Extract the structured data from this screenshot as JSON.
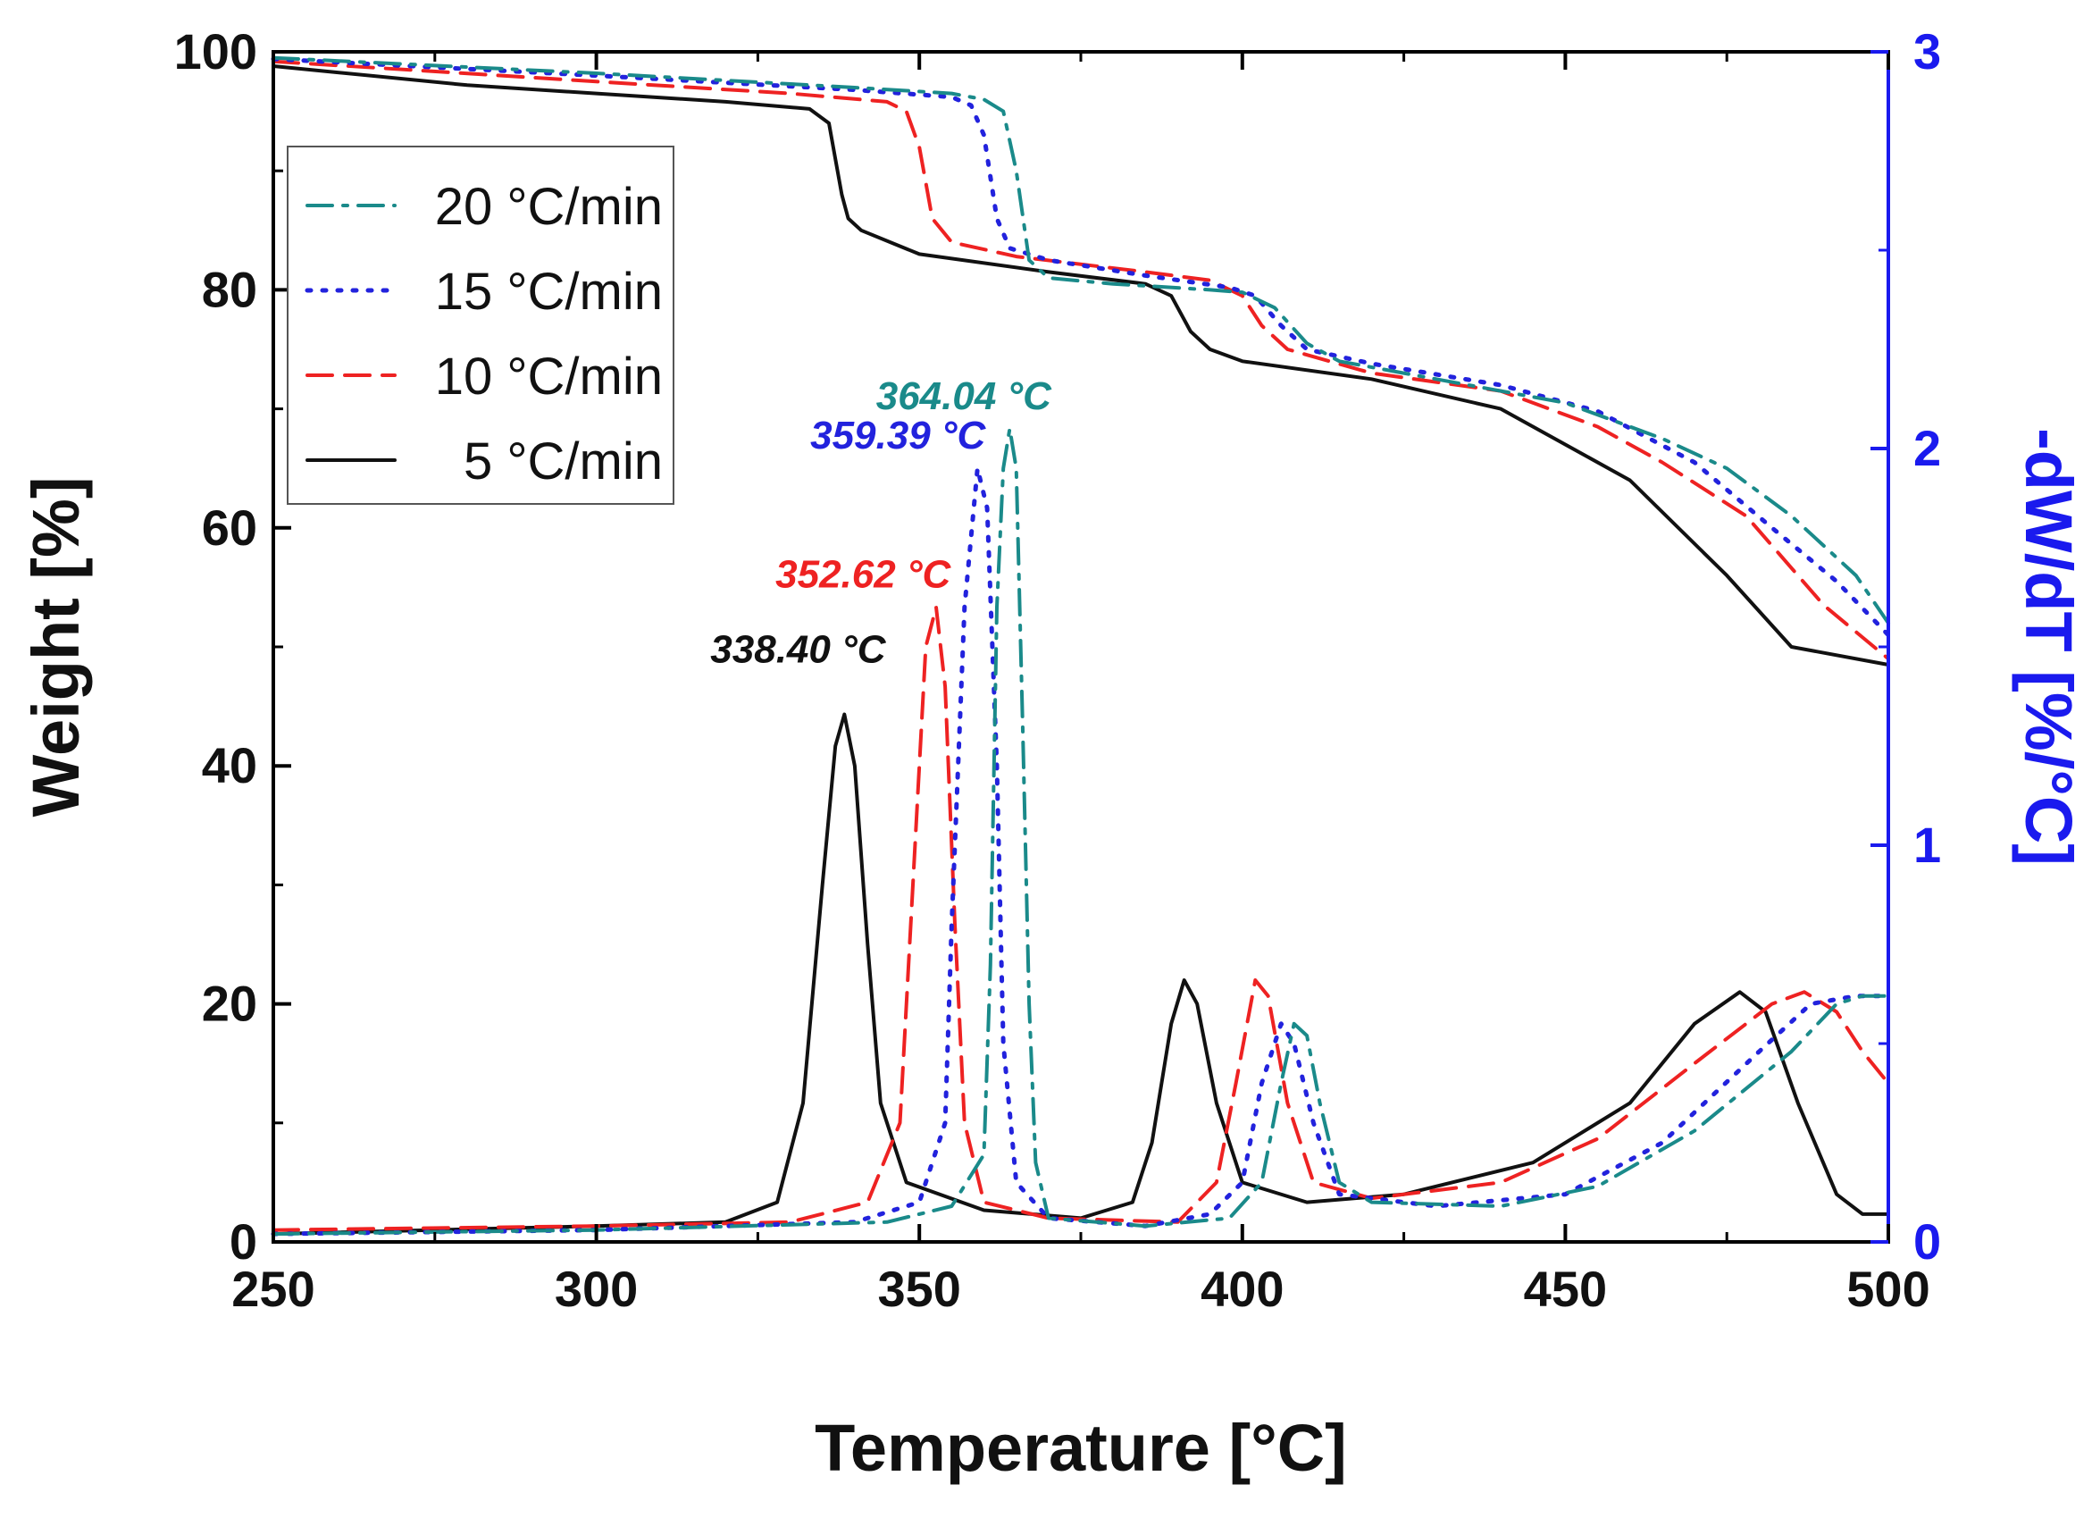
{
  "chart_data": {
    "type": "line",
    "title": "",
    "xlabel": "Temperature [°C]",
    "ylabel_left": "Weight [%]",
    "ylabel_right": "-dW/dT [%/°C]",
    "xlim": [
      250,
      500
    ],
    "ylim_left": [
      0,
      100
    ],
    "ylim_right": [
      0,
      3
    ],
    "x_ticks": [
      "250",
      "300",
      "350",
      "400",
      "450",
      "500"
    ],
    "y_left_ticks": [
      "0",
      "20",
      "40",
      "60",
      "80",
      "100"
    ],
    "y_right_ticks": [
      "0",
      "1",
      "2",
      "3"
    ],
    "legend_position": "top-left",
    "series": [
      {
        "name": "20 °C/min",
        "color": "#1a8a8a",
        "dash": "dashdot",
        "weight": [
          [
            250,
            99.5
          ],
          [
            300,
            98.2
          ],
          [
            340,
            97.0
          ],
          [
            355,
            96.5
          ],
          [
            360,
            96.0
          ],
          [
            363,
            95.0
          ],
          [
            365,
            90.0
          ],
          [
            367,
            82.5
          ],
          [
            370,
            81.0
          ],
          [
            380,
            80.5
          ],
          [
            395,
            80.0
          ],
          [
            400,
            79.8
          ],
          [
            405,
            78.5
          ],
          [
            410,
            75.5
          ],
          [
            415,
            74.0
          ],
          [
            430,
            72.5
          ],
          [
            450,
            70.5
          ],
          [
            465,
            67.5
          ],
          [
            475,
            65.0
          ],
          [
            485,
            61.0
          ],
          [
            495,
            56.0
          ],
          [
            500,
            52.0
          ]
        ],
        "derivative": [
          [
            250,
            0.02
          ],
          [
            300,
            0.03
          ],
          [
            345,
            0.05
          ],
          [
            355,
            0.09
          ],
          [
            360,
            0.22
          ],
          [
            361,
            0.7
          ],
          [
            362,
            1.6
          ],
          [
            363,
            1.95
          ],
          [
            364,
            2.05
          ],
          [
            365,
            1.95
          ],
          [
            366,
            1.3
          ],
          [
            367,
            0.6
          ],
          [
            368,
            0.2
          ],
          [
            370,
            0.06
          ],
          [
            385,
            0.04
          ],
          [
            398,
            0.06
          ],
          [
            403,
            0.15
          ],
          [
            406,
            0.4
          ],
          [
            408,
            0.55
          ],
          [
            410,
            0.52
          ],
          [
            412,
            0.35
          ],
          [
            415,
            0.15
          ],
          [
            420,
            0.1
          ],
          [
            440,
            0.09
          ],
          [
            455,
            0.14
          ],
          [
            470,
            0.28
          ],
          [
            485,
            0.48
          ],
          [
            492,
            0.6
          ],
          [
            496,
            0.62
          ],
          [
            500,
            0.62
          ]
        ]
      },
      {
        "name": "15 °C/min",
        "color": "#2222dd",
        "dash": "dot",
        "weight": [
          [
            250,
            99.4
          ],
          [
            300,
            98.0
          ],
          [
            340,
            96.8
          ],
          [
            355,
            96.2
          ],
          [
            358,
            95.5
          ],
          [
            360,
            93.0
          ],
          [
            362,
            86.0
          ],
          [
            364,
            83.5
          ],
          [
            370,
            82.5
          ],
          [
            385,
            81.2
          ],
          [
            398,
            80.2
          ],
          [
            402,
            79.5
          ],
          [
            406,
            77.0
          ],
          [
            410,
            75.0
          ],
          [
            420,
            73.8
          ],
          [
            440,
            72.0
          ],
          [
            455,
            69.8
          ],
          [
            470,
            65.5
          ],
          [
            482,
            60.0
          ],
          [
            492,
            55.5
          ],
          [
            500,
            51.0
          ]
        ],
        "derivative": [
          [
            250,
            0.02
          ],
          [
            300,
            0.03
          ],
          [
            340,
            0.05
          ],
          [
            350,
            0.1
          ],
          [
            354,
            0.3
          ],
          [
            355,
            0.8
          ],
          [
            357,
            1.6
          ],
          [
            359,
            1.95
          ],
          [
            360.5,
            1.85
          ],
          [
            362,
            1.2
          ],
          [
            363,
            0.5
          ],
          [
            365,
            0.15
          ],
          [
            370,
            0.06
          ],
          [
            385,
            0.04
          ],
          [
            395,
            0.07
          ],
          [
            400,
            0.15
          ],
          [
            403,
            0.4
          ],
          [
            406,
            0.55
          ],
          [
            408,
            0.5
          ],
          [
            411,
            0.3
          ],
          [
            415,
            0.12
          ],
          [
            430,
            0.09
          ],
          [
            450,
            0.12
          ],
          [
            465,
            0.25
          ],
          [
            480,
            0.48
          ],
          [
            488,
            0.6
          ],
          [
            495,
            0.62
          ],
          [
            500,
            0.62
          ]
        ]
      },
      {
        "name": "10 °C/min",
        "color": "#ee2222",
        "dash": "dash",
        "weight": [
          [
            250,
            99.2
          ],
          [
            300,
            97.5
          ],
          [
            330,
            96.5
          ],
          [
            345,
            95.8
          ],
          [
            348,
            95.0
          ],
          [
            350,
            92.0
          ],
          [
            352,
            86.0
          ],
          [
            355,
            84.0
          ],
          [
            365,
            82.8
          ],
          [
            385,
            81.5
          ],
          [
            395,
            80.8
          ],
          [
            400,
            79.5
          ],
          [
            403,
            77.0
          ],
          [
            407,
            75.0
          ],
          [
            420,
            73.0
          ],
          [
            440,
            71.5
          ],
          [
            455,
            68.5
          ],
          [
            465,
            65.5
          ],
          [
            478,
            61.0
          ],
          [
            490,
            53.5
          ],
          [
            500,
            49.0
          ]
        ],
        "derivative": [
          [
            250,
            0.03
          ],
          [
            300,
            0.04
          ],
          [
            330,
            0.05
          ],
          [
            342,
            0.1
          ],
          [
            347,
            0.3
          ],
          [
            349,
            0.9
          ],
          [
            351,
            1.5
          ],
          [
            352.6,
            1.6
          ],
          [
            354,
            1.4
          ],
          [
            355.5,
            0.8
          ],
          [
            357,
            0.3
          ],
          [
            360,
            0.1
          ],
          [
            370,
            0.06
          ],
          [
            390,
            0.05
          ],
          [
            396,
            0.15
          ],
          [
            399,
            0.4
          ],
          [
            402,
            0.66
          ],
          [
            404,
            0.62
          ],
          [
            407,
            0.35
          ],
          [
            411,
            0.15
          ],
          [
            420,
            0.11
          ],
          [
            440,
            0.15
          ],
          [
            455,
            0.26
          ],
          [
            470,
            0.45
          ],
          [
            482,
            0.6
          ],
          [
            487,
            0.63
          ],
          [
            492,
            0.58
          ],
          [
            496,
            0.48
          ],
          [
            500,
            0.4
          ]
        ]
      },
      {
        "name": "5 °C/min",
        "color": "#111111",
        "dash": "solid",
        "weight": [
          [
            250,
            98.8
          ],
          [
            280,
            97.2
          ],
          [
            300,
            96.5
          ],
          [
            320,
            95.8
          ],
          [
            333,
            95.2
          ],
          [
            336,
            94.0
          ],
          [
            337,
            91.0
          ],
          [
            338,
            88.0
          ],
          [
            339,
            86.0
          ],
          [
            341,
            85.0
          ],
          [
            350,
            83.0
          ],
          [
            370,
            81.5
          ],
          [
            385,
            80.5
          ],
          [
            389,
            79.5
          ],
          [
            392,
            76.5
          ],
          [
            395,
            75.0
          ],
          [
            400,
            74.0
          ],
          [
            420,
            72.5
          ],
          [
            440,
            70.0
          ],
          [
            460,
            64.0
          ],
          [
            475,
            56.0
          ],
          [
            485,
            50.0
          ],
          [
            500,
            48.5
          ]
        ],
        "derivative": [
          [
            250,
            0.02
          ],
          [
            300,
            0.04
          ],
          [
            320,
            0.05
          ],
          [
            328,
            0.1
          ],
          [
            332,
            0.35
          ],
          [
            335,
            0.9
          ],
          [
            337,
            1.25
          ],
          [
            338.4,
            1.33
          ],
          [
            340,
            1.2
          ],
          [
            342,
            0.75
          ],
          [
            344,
            0.35
          ],
          [
            348,
            0.15
          ],
          [
            360,
            0.08
          ],
          [
            375,
            0.06
          ],
          [
            383,
            0.1
          ],
          [
            386,
            0.25
          ],
          [
            389,
            0.55
          ],
          [
            391,
            0.66
          ],
          [
            393,
            0.6
          ],
          [
            396,
            0.35
          ],
          [
            400,
            0.15
          ],
          [
            410,
            0.1
          ],
          [
            425,
            0.12
          ],
          [
            445,
            0.2
          ],
          [
            460,
            0.35
          ],
          [
            470,
            0.55
          ],
          [
            477,
            0.63
          ],
          [
            481,
            0.58
          ],
          [
            486,
            0.35
          ],
          [
            492,
            0.12
          ],
          [
            496,
            0.07
          ],
          [
            500,
            0.07
          ]
        ]
      }
    ],
    "annotations": [
      {
        "text": "364.04 °C",
        "color": "#1a8a8a",
        "x": 364.04,
        "y_right": 2.05
      },
      {
        "text": "359.39 °C",
        "color": "#2222dd",
        "x": 359.39,
        "y_right": 1.95
      },
      {
        "text": "352.62 °C",
        "color": "#ee2222",
        "x": 352.62,
        "y_right": 1.6
      },
      {
        "text": "338.40 °C",
        "color": "#111111",
        "x": 338.4,
        "y_right": 1.33
      }
    ],
    "right_axis_color": "#1a1aee"
  }
}
